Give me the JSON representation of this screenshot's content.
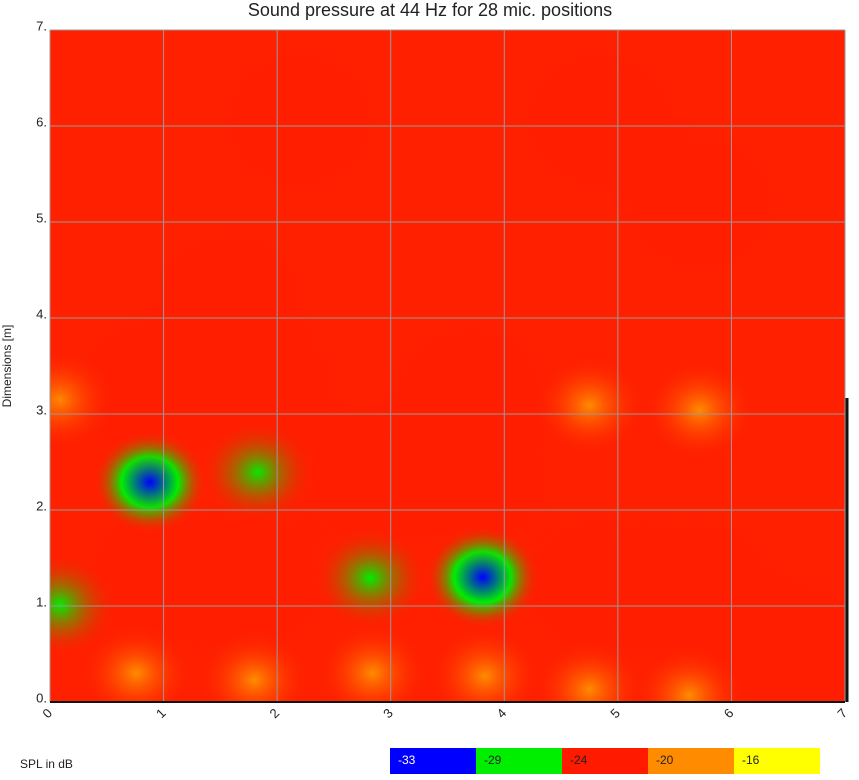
{
  "chart_data": {
    "type": "heatmap",
    "title": "Sound pressure at 44 Hz for 28 mic. positions",
    "y_label": "Dimensions [m]",
    "legend_title": "SPL in dB",
    "xlim": [
      0,
      7
    ],
    "ylim": [
      0,
      7
    ],
    "xticks": [
      0,
      1,
      2,
      3,
      4,
      5,
      6,
      7
    ],
    "yticks": [
      {
        "value": 0,
        "label": "0."
      },
      {
        "value": 1,
        "label": "1."
      },
      {
        "value": 2,
        "label": "2."
      },
      {
        "value": 3,
        "label": "3."
      },
      {
        "value": 4,
        "label": "4."
      },
      {
        "value": 5,
        "label": "5."
      },
      {
        "value": 6,
        "label": "6."
      },
      {
        "value": 7,
        "label": "7."
      }
    ],
    "grid": true,
    "scale": [
      {
        "value": -33,
        "color": "#0000ff"
      },
      {
        "value": -29,
        "color": "#00ee00"
      },
      {
        "value": -24,
        "color": "#ff1a00"
      },
      {
        "value": -20,
        "color": "#ff8c00"
      },
      {
        "value": -16,
        "color": "#ffff00"
      }
    ],
    "x": [
      0.88,
      1.83,
      2.82,
      3.81,
      0.09,
      0.09,
      0.76,
      1.8,
      2.84,
      3.83,
      4.75,
      5.63,
      4.75,
      5.72,
      5.72,
      3.74,
      2.82,
      3.7,
      4.84,
      0.97,
      1.76,
      0.88,
      1.85,
      1.58,
      5.72,
      2.2,
      4.84,
      6.6
    ],
    "y": [
      2.29,
      2.4,
      1.29,
      1.3,
      1.01,
      3.15,
      0.3,
      0.23,
      0.3,
      0.27,
      0.13,
      0.07,
      3.09,
      3.04,
      1.17,
      2.31,
      2.35,
      3.2,
      1.22,
      1.27,
      1.27,
      3.25,
      3.25,
      4.19,
      5.2,
      6.06,
      6.06,
      0.54
    ],
    "values": [
      -33,
      -29,
      -29,
      -33,
      -29,
      -20,
      -20,
      -20,
      -20,
      -20,
      -20,
      -20,
      -20,
      -18,
      -23,
      -26,
      -26,
      -26,
      -23,
      -25,
      -25,
      -26,
      -26,
      -26,
      -22,
      -24,
      -24,
      -23
    ]
  }
}
